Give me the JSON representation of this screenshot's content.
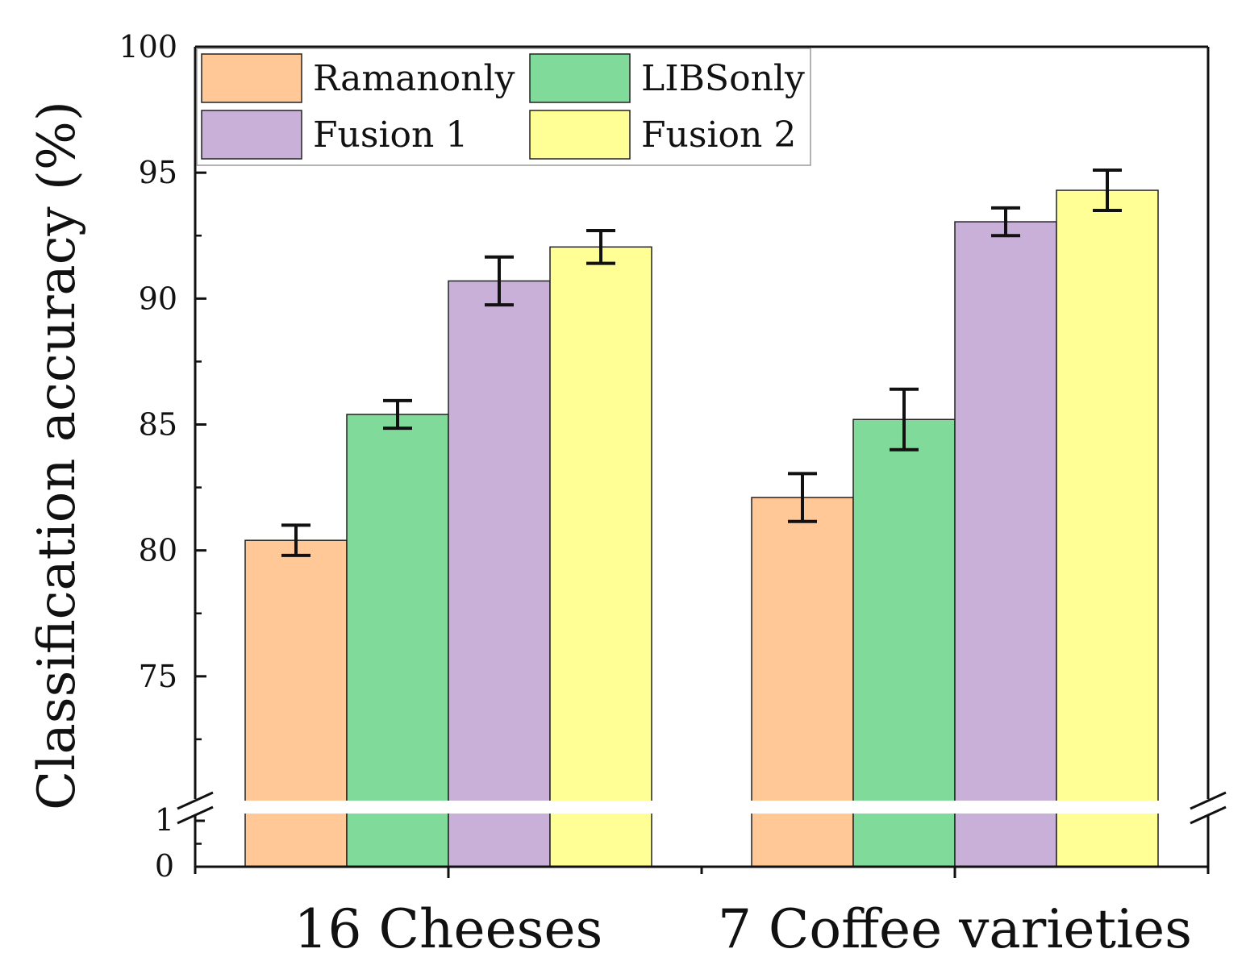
{
  "chart_data": {
    "type": "bar",
    "title": "",
    "ylabel": "Classification accuracy (%)",
    "xlabel": "",
    "categories": [
      "16 Cheeses",
      "7 Coffee varieties"
    ],
    "series": [
      {
        "name": "Ramanonly",
        "color": "#FFC896",
        "values": [
          80.4,
          82.1
        ],
        "errors": [
          0.6,
          0.95
        ]
      },
      {
        "name": "LIBSonly",
        "color": "#80DB9B",
        "values": [
          85.4,
          85.2
        ],
        "errors": [
          0.55,
          1.2
        ]
      },
      {
        "name": "Fusion 1",
        "color": "#C8B0D8",
        "values": [
          90.7,
          93.05
        ],
        "errors": [
          0.95,
          0.55
        ]
      },
      {
        "name": "Fusion 2",
        "color": "#FFFF96",
        "values": [
          92.05,
          94.3
        ],
        "errors": [
          0.65,
          0.8
        ]
      }
    ],
    "ylim_upper": [
      70,
      100
    ],
    "ylim_lower": [
      0,
      1
    ],
    "yticks_upper": [
      75,
      80,
      85,
      90,
      95,
      100
    ],
    "yticks_lower": [
      0,
      1
    ],
    "axis_break": true,
    "grid": false,
    "legend_position": "top-left"
  }
}
